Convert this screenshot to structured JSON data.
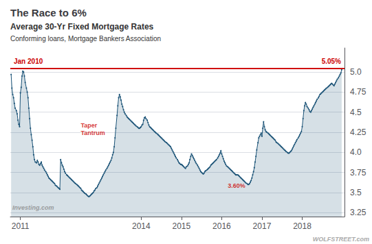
{
  "chart_data": {
    "type": "line",
    "title": "The Race to 6%",
    "subtitle": [
      "Average 30-Yr Fixed Mortgage Rates",
      "Conforming loans, Mortgage Bankers Association"
    ],
    "color": "#1a5276",
    "marker": "circle",
    "grid": true,
    "xlim": [
      2010.75,
      2019.05
    ],
    "xticks": [
      2011,
      2014,
      2015,
      2016,
      2017,
      2018
    ],
    "ylim": [
      3.2,
      5.3
    ],
    "yticks": [
      3.25,
      3.5,
      3.75,
      {
        "value": 4,
        "label": "4.0"
      },
      4.25,
      4.5,
      4.75,
      {
        "value": 5,
        "label": "5.0"
      }
    ],
    "reference_line": {
      "value": 5.05,
      "labels": [
        "Jan 2010",
        "5.05%"
      ],
      "color": "#cc0000"
    },
    "annotations": [
      {
        "text": "Taper\nTantrum",
        "x": 2012.5,
        "y": 4.38,
        "color": "#cc0000"
      },
      {
        "text": "3.60%",
        "x": 2016.15,
        "y": 3.54,
        "color": "#cc0000"
      },
      {
        "text": "Investing.com",
        "x": 2010.8,
        "y": 3.26
      },
      {
        "text": "WOLFSTREET.com"
      }
    ],
    "x": [
      2010.77,
      2010.79,
      2010.81,
      2010.83,
      2010.85,
      2010.87,
      2010.9,
      2010.92,
      2010.94,
      2010.96,
      2010.98,
      2011.0,
      2011.02,
      2011.04,
      2011.06,
      2011.08,
      2011.1,
      2011.12,
      2011.15,
      2011.17,
      2011.19,
      2011.21,
      2011.23,
      2011.25,
      2011.27,
      2011.29,
      2011.31,
      2011.33,
      2011.35,
      2011.37,
      2011.4,
      2011.42,
      2011.44,
      2011.46,
      2011.48,
      2011.5,
      2011.52,
      2011.54,
      2011.56,
      2011.58,
      2011.6,
      2011.63,
      2011.65,
      2011.67,
      2011.69,
      2011.71,
      2011.73,
      2011.75,
      2011.77,
      2011.79,
      2011.81,
      2011.83,
      2011.85,
      2011.87,
      2011.9,
      2011.92,
      2011.94,
      2011.96,
      2011.98,
      2012.0,
      2012.02,
      2012.04,
      2012.06,
      2012.08,
      2012.1,
      2012.12,
      2012.15,
      2012.17,
      2012.19,
      2012.21,
      2012.23,
      2012.25,
      2012.27,
      2012.29,
      2012.31,
      2012.33,
      2012.35,
      2012.37,
      2012.4,
      2012.42,
      2012.44,
      2012.46,
      2012.48,
      2012.5,
      2012.52,
      2012.54,
      2012.56,
      2012.58,
      2012.6,
      2012.63,
      2012.65,
      2012.67,
      2012.69,
      2012.71,
      2012.73,
      2012.75,
      2012.77,
      2012.79,
      2012.81,
      2012.83,
      2012.85,
      2012.87,
      2012.9,
      2012.92,
      2012.94,
      2012.96,
      2012.98,
      2013.0,
      2013.02,
      2013.04,
      2013.06,
      2013.08,
      2013.1,
      2013.12,
      2013.15,
      2013.17,
      2013.19,
      2013.21,
      2013.23,
      2013.25,
      2013.27,
      2013.29,
      2013.31,
      2013.33,
      2013.35,
      2013.37,
      2013.4,
      2013.42,
      2013.44,
      2013.46,
      2013.48,
      2013.5,
      2013.52,
      2013.54,
      2013.56,
      2013.58,
      2013.6,
      2013.63,
      2013.65,
      2013.67,
      2013.69,
      2013.71,
      2013.73,
      2013.75,
      2013.77,
      2013.79,
      2013.81,
      2013.83,
      2013.85,
      2013.87,
      2013.9,
      2013.92,
      2013.94,
      2013.96,
      2013.98,
      2014.0,
      2014.02,
      2014.04,
      2014.06,
      2014.08,
      2014.1,
      2014.12,
      2014.15,
      2014.17,
      2014.19,
      2014.21,
      2014.23,
      2014.25,
      2014.27,
      2014.29,
      2014.31,
      2014.33,
      2014.35,
      2014.37,
      2014.4,
      2014.42,
      2014.44,
      2014.46,
      2014.48,
      2014.5,
      2014.52,
      2014.54,
      2014.56,
      2014.58,
      2014.6,
      2014.63,
      2014.65,
      2014.67,
      2014.69,
      2014.71,
      2014.73,
      2014.75,
      2014.77,
      2014.79,
      2014.81,
      2014.83,
      2014.85,
      2014.87,
      2014.9,
      2014.92,
      2014.94,
      2014.96,
      2014.98,
      2015.0,
      2015.02,
      2015.04,
      2015.06,
      2015.08,
      2015.1,
      2015.12,
      2015.15,
      2015.17,
      2015.19,
      2015.21,
      2015.23,
      2015.25,
      2015.27,
      2015.29,
      2015.31,
      2015.33,
      2015.35,
      2015.37,
      2015.4,
      2015.42,
      2015.44,
      2015.46,
      2015.48,
      2015.5,
      2015.52,
      2015.54,
      2015.56,
      2015.58,
      2015.6,
      2015.63,
      2015.65,
      2015.67,
      2015.69,
      2015.71,
      2015.73,
      2015.75,
      2015.77,
      2015.79,
      2015.81,
      2015.83,
      2015.85,
      2015.87,
      2015.9,
      2015.92,
      2015.94,
      2015.96,
      2015.98,
      2016.0,
      2016.02,
      2016.04,
      2016.06,
      2016.08,
      2016.1,
      2016.12,
      2016.15,
      2016.17,
      2016.19,
      2016.21,
      2016.23,
      2016.25,
      2016.27,
      2016.29,
      2016.31,
      2016.33,
      2016.35,
      2016.37,
      2016.4,
      2016.42,
      2016.44,
      2016.46,
      2016.48,
      2016.5,
      2016.52,
      2016.54,
      2016.56,
      2016.58,
      2016.6,
      2016.63,
      2016.65,
      2016.67,
      2016.69,
      2016.71,
      2016.73,
      2016.75,
      2016.77,
      2016.79,
      2016.81,
      2016.83,
      2016.85,
      2016.87,
      2016.9,
      2016.92,
      2016.94,
      2016.96,
      2016.98,
      2017.0,
      2017.02,
      2017.04,
      2017.06,
      2017.08,
      2017.1,
      2017.12,
      2017.15,
      2017.17,
      2017.19,
      2017.21,
      2017.23,
      2017.25,
      2017.27,
      2017.29,
      2017.31,
      2017.33,
      2017.35,
      2017.37,
      2017.4,
      2017.42,
      2017.44,
      2017.46,
      2017.48,
      2017.5,
      2017.52,
      2017.54,
      2017.56,
      2017.58,
      2017.6,
      2017.63,
      2017.65,
      2017.67,
      2017.69,
      2017.71,
      2017.73,
      2017.75,
      2017.77,
      2017.79,
      2017.81,
      2017.83,
      2017.85,
      2017.87,
      2017.9,
      2017.92,
      2017.94,
      2017.96,
      2017.98,
      2018.0,
      2018.02,
      2018.04,
      2018.06,
      2018.08,
      2018.1,
      2018.12,
      2018.15,
      2018.17,
      2018.19,
      2018.21,
      2018.23,
      2018.25,
      2018.27,
      2018.29,
      2018.31,
      2018.33,
      2018.35,
      2018.37,
      2018.4,
      2018.42,
      2018.44,
      2018.46,
      2018.48,
      2018.5,
      2018.52,
      2018.54,
      2018.56,
      2018.58,
      2018.6,
      2018.63,
      2018.65,
      2018.67,
      2018.69,
      2018.71,
      2018.73,
      2018.75,
      2018.77,
      2018.79,
      2018.81,
      2018.83,
      2018.85,
      2018.87,
      2018.9,
      2018.92,
      2018.94,
      2018.96,
      2018.98
    ],
    "values": [
      4.97,
      4.8,
      4.72,
      4.68,
      4.61,
      4.55,
      4.52,
      4.48,
      4.4,
      4.35,
      4.32,
      4.74,
      4.81,
      4.95,
      5.01,
      5.0,
      4.95,
      4.87,
      4.8,
      4.75,
      4.68,
      4.55,
      4.42,
      4.3,
      4.22,
      4.15,
      4.07,
      3.97,
      3.91,
      3.88,
      3.87,
      3.9,
      3.88,
      3.85,
      3.84,
      3.86,
      3.88,
      3.84,
      3.82,
      3.8,
      3.78,
      3.76,
      3.74,
      3.72,
      3.7,
      3.68,
      3.67,
      3.66,
      3.65,
      3.64,
      3.63,
      3.62,
      3.61,
      3.59,
      3.58,
      3.57,
      3.56,
      3.55,
      3.54,
      3.91,
      3.87,
      3.84,
      3.82,
      3.79,
      3.76,
      3.74,
      3.72,
      3.71,
      3.7,
      3.69,
      3.68,
      3.67,
      3.66,
      3.65,
      3.64,
      3.63,
      3.62,
      3.61,
      3.6,
      3.59,
      3.58,
      3.57,
      3.56,
      3.55,
      3.53,
      3.52,
      3.51,
      3.5,
      3.49,
      3.48,
      3.47,
      3.46,
      3.45,
      3.45,
      3.46,
      3.47,
      3.48,
      3.49,
      3.5,
      3.52,
      3.53,
      3.55,
      3.56,
      3.58,
      3.6,
      3.62,
      3.64,
      3.66,
      3.68,
      3.7,
      3.72,
      3.74,
      3.76,
      3.78,
      3.8,
      3.82,
      3.84,
      3.86,
      3.88,
      3.9,
      3.93,
      3.97,
      4.0,
      4.07,
      4.18,
      4.3,
      4.46,
      4.58,
      4.68,
      4.72,
      4.69,
      4.65,
      4.6,
      4.57,
      4.53,
      4.5,
      4.48,
      4.46,
      4.44,
      4.43,
      4.42,
      4.41,
      4.4,
      4.39,
      4.38,
      4.37,
      4.36,
      4.35,
      4.34,
      4.33,
      4.32,
      4.31,
      4.3,
      4.3,
      4.31,
      4.32,
      4.34,
      4.35,
      4.4,
      4.43,
      4.44,
      4.42,
      4.4,
      4.37,
      4.34,
      4.32,
      4.31,
      4.3,
      4.29,
      4.28,
      4.27,
      4.26,
      4.25,
      4.24,
      4.23,
      4.22,
      4.21,
      4.2,
      4.19,
      4.18,
      4.17,
      4.16,
      4.15,
      4.14,
      4.13,
      4.12,
      4.11,
      4.1,
      4.09,
      4.08,
      4.07,
      4.05,
      4.03,
      4.01,
      3.99,
      3.97,
      3.95,
      3.93,
      3.91,
      3.89,
      3.87,
      3.86,
      3.85,
      3.85,
      3.84,
      3.83,
      3.82,
      3.81,
      3.8,
      3.82,
      3.83,
      3.85,
      3.87,
      3.91,
      3.95,
      3.98,
      3.96,
      3.94,
      3.92,
      3.9,
      3.88,
      3.86,
      3.84,
      3.82,
      3.8,
      3.78,
      3.76,
      3.75,
      3.74,
      3.73,
      3.74,
      3.76,
      3.77,
      3.78,
      3.79,
      3.8,
      3.81,
      3.82,
      3.84,
      3.85,
      3.86,
      3.87,
      3.88,
      3.89,
      3.9,
      3.91,
      3.93,
      3.95,
      3.97,
      3.99,
      4.02,
      3.98,
      3.95,
      3.92,
      3.89,
      3.87,
      3.85,
      3.83,
      3.82,
      3.81,
      3.8,
      3.79,
      3.78,
      3.77,
      3.76,
      3.75,
      3.74,
      3.73,
      3.72,
      3.72,
      3.72,
      3.71,
      3.7,
      3.69,
      3.68,
      3.67,
      3.66,
      3.65,
      3.64,
      3.63,
      3.62,
      3.61,
      3.6,
      3.6,
      3.61,
      3.63,
      3.65,
      3.68,
      3.72,
      3.76,
      3.81,
      3.88,
      3.95,
      4.03,
      4.12,
      4.18,
      4.2,
      4.22,
      4.24,
      4.2,
      4.3,
      4.38,
      4.32,
      4.28,
      4.26,
      4.25,
      4.24,
      4.23,
      4.22,
      4.21,
      4.2,
      4.19,
      4.18,
      4.17,
      4.16,
      4.15,
      4.13,
      4.12,
      4.11,
      4.1,
      4.09,
      4.08,
      4.07,
      4.06,
      4.05,
      4.04,
      4.03,
      4.02,
      4.01,
      4.0,
      3.99,
      3.99,
      4.0,
      4.01,
      4.02,
      4.04,
      4.06,
      4.08,
      4.1,
      4.12,
      4.14,
      4.16,
      4.18,
      4.2,
      4.22,
      4.24,
      4.26,
      4.32,
      4.42,
      4.52,
      4.58,
      4.62,
      4.6,
      4.57,
      4.55,
      4.53,
      4.51,
      4.5,
      4.52,
      4.54,
      4.56,
      4.58,
      4.6,
      4.62,
      4.64,
      4.66,
      4.68,
      4.7,
      4.72,
      4.73,
      4.74,
      4.75,
      4.76,
      4.77,
      4.78,
      4.79,
      4.8,
      4.81,
      4.82,
      4.83,
      4.84,
      4.85,
      4.86,
      4.85,
      4.84,
      4.83,
      4.85,
      4.87,
      4.89,
      4.91,
      4.93,
      4.95,
      4.97,
      4.99,
      5.03
    ]
  }
}
